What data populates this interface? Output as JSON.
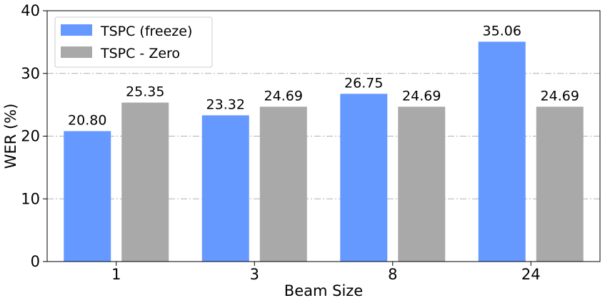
{
  "chart_data": {
    "type": "bar",
    "categories": [
      "1",
      "3",
      "8",
      "24"
    ],
    "series": [
      {
        "name": "TSPC (freeze)",
        "values": [
          20.8,
          23.32,
          26.75,
          35.06
        ],
        "labels": [
          "20.80",
          "23.32",
          "26.75",
          "35.06"
        ],
        "color": "#6699ff"
      },
      {
        "name": "TSPC - Zero",
        "values": [
          25.35,
          24.69,
          24.69,
          24.69
        ],
        "labels": [
          "25.35",
          "24.69",
          "24.69",
          "24.69"
        ],
        "color": "#a9a9a9"
      }
    ],
    "xlabel": "Beam Size",
    "ylabel": "WER (%)",
    "ylim": [
      0,
      40
    ],
    "yticks": [
      "0",
      "10",
      "20",
      "30",
      "40"
    ],
    "grid": "horizontal dash-dot",
    "legend_position": "top-left"
  }
}
